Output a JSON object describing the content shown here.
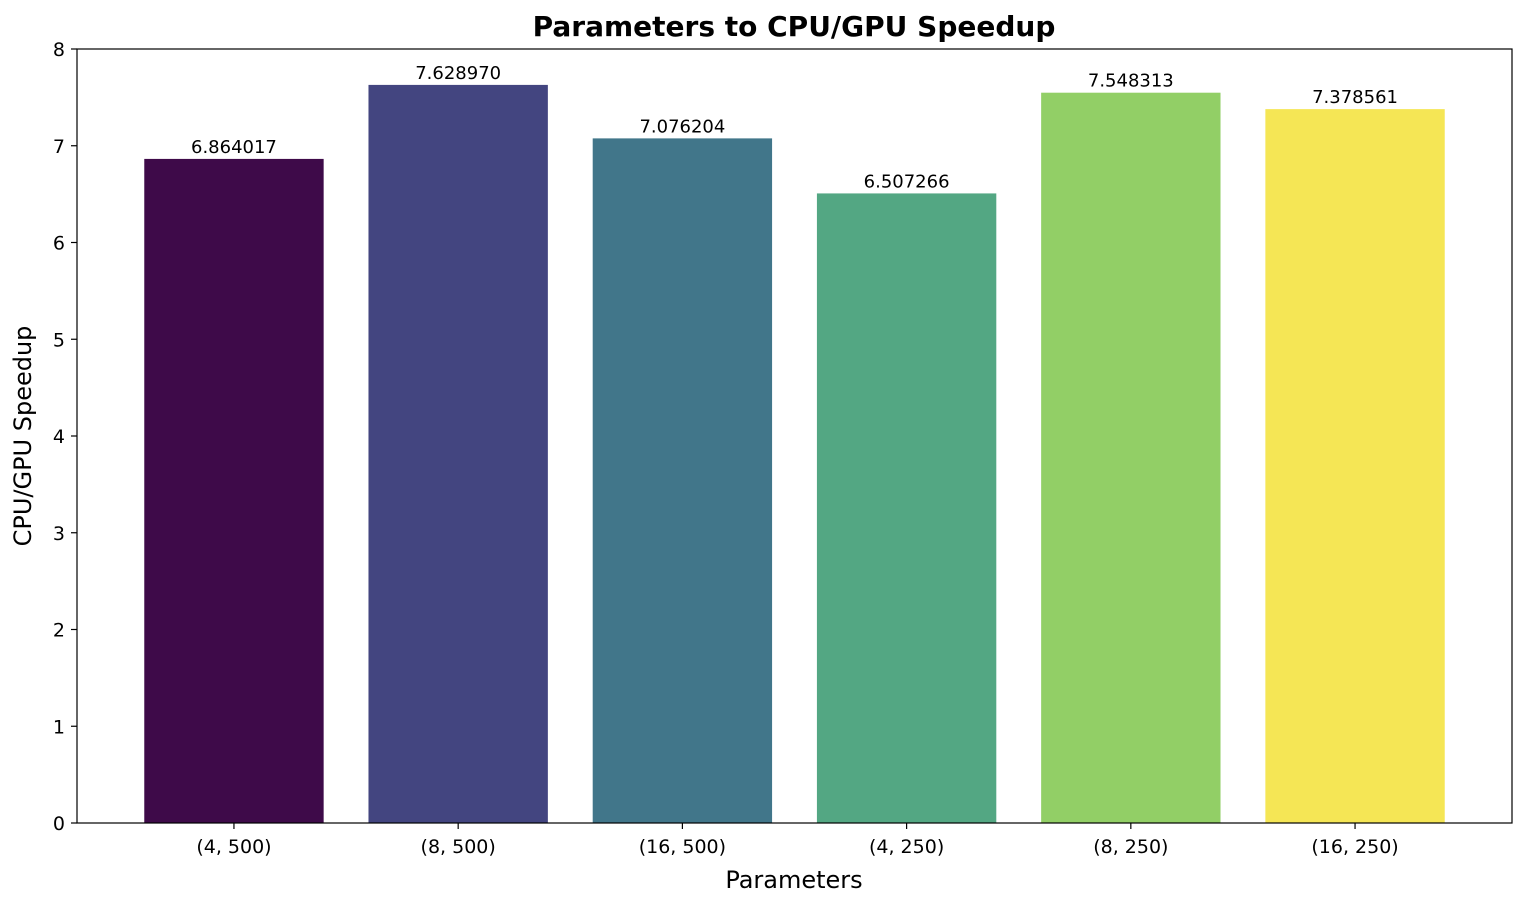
{
  "chart_data": {
    "type": "bar",
    "title": "Parameters to CPU/GPU Speedup",
    "xlabel": "Parameters",
    "ylabel": "CPU/GPU Speedup",
    "categories": [
      "(4, 500)",
      "(8, 500)",
      "(16, 500)",
      "(4, 250)",
      "(8, 250)",
      "(16, 250)"
    ],
    "values": [
      6.864017,
      7.62897,
      7.076204,
      6.507266,
      7.548313,
      7.378561
    ],
    "data_labels": [
      "6.864017",
      "7.628970",
      "7.076204",
      "6.507266",
      "7.548313",
      "7.378561"
    ],
    "colors": [
      "#3e0a49",
      "#434580",
      "#41768a",
      "#53a783",
      "#92cf66",
      "#f5e655"
    ],
    "ylim": [
      0,
      8
    ],
    "yticks": [
      0,
      1,
      2,
      3,
      4,
      5,
      6,
      7,
      8
    ],
    "grid": false,
    "legend": "none"
  }
}
